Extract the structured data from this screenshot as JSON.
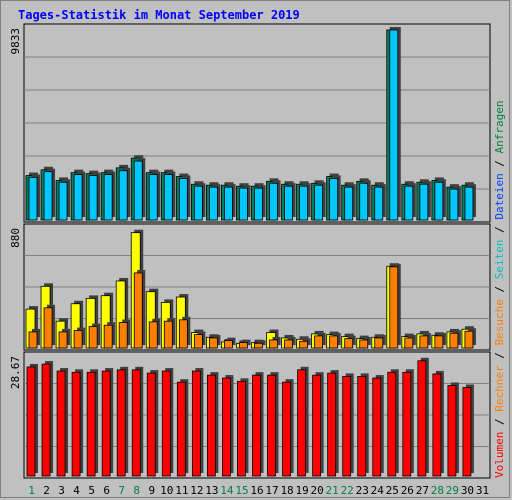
{
  "chart_data": {
    "type": "bar",
    "title": "Tages-Statistik im Monat September 2019",
    "days": [
      "1",
      "2",
      "3",
      "4",
      "5",
      "6",
      "7",
      "8",
      "9",
      "10",
      "11",
      "12",
      "13",
      "14",
      "15",
      "16",
      "17",
      "18",
      "19",
      "20",
      "21",
      "22",
      "23",
      "24",
      "25",
      "26",
      "27",
      "28",
      "29",
      "30",
      "31"
    ],
    "weekend_days": [
      "1",
      "7",
      "8",
      "14",
      "15",
      "21",
      "22",
      "28",
      "29"
    ],
    "colors": {
      "weekday_label": "#000000",
      "weekend_label": "#008040",
      "anfragen": "#008060",
      "dateien": "#00c8ff",
      "seiten": "#ffff00",
      "besuche": "#ff8000",
      "volumen": "#ff0000",
      "grid": "#808080",
      "plot_bg": "#c0c0c0"
    },
    "panels": [
      {
        "name": "hits-files",
        "ymax_label": "9833",
        "ymax": 9833,
        "series": [
          {
            "name": "Anfragen",
            "key": "anfragen",
            "values": [
              2300,
              2600,
              2050,
              2450,
              2400,
              2450,
              2700,
              3200,
              2450,
              2450,
              2250,
              1850,
              1800,
              1800,
              1750,
              1750,
              2000,
              1850,
              1850,
              1900,
              2250,
              1800,
              2000,
              1800,
              9833,
              1850,
              1950,
              2050,
              1700,
              1800
            ]
          },
          {
            "name": "Dateien",
            "key": "dateien",
            "values": [
              2200,
              2500,
              1950,
              2350,
              2300,
              2350,
              2550,
              3050,
              2350,
              2350,
              2150,
              1750,
              1700,
              1700,
              1650,
              1650,
              1900,
              1750,
              1750,
              1800,
              2150,
              1700,
              1900,
              1700,
              9833,
              1750,
              1850,
              1950,
              1600,
              1700
            ]
          }
        ]
      },
      {
        "name": "pages-visits",
        "ymax_label": "880",
        "ymax": 880,
        "series": [
          {
            "name": "Seiten",
            "key": "seiten",
            "values": [
              290,
              460,
              200,
              330,
              370,
              390,
              500,
              860,
              420,
              340,
              380,
              115,
              80,
              45,
              35,
              40,
              115,
              75,
              65,
              105,
              100,
              85,
              70,
              80,
              610,
              85,
              105,
              95,
              120,
              140
            ]
          },
          {
            "name": "Besuche",
            "key": "besuche",
            "values": [
              120,
              300,
              120,
              130,
              160,
              170,
              190,
              560,
              195,
              200,
              210,
              100,
              75,
              55,
              40,
              35,
              60,
              60,
              50,
              90,
              90,
              70,
              60,
              75,
              605,
              75,
              90,
              90,
              110,
              125
            ]
          }
        ]
      },
      {
        "name": "volume",
        "ymax_label": "28.67",
        "ymax": 28.67,
        "series": [
          {
            "name": "Volumen",
            "key": "volumen",
            "values": [
              26.5,
              27.2,
              25.5,
              25.2,
              25.2,
              25.5,
              25.8,
              25.8,
              25.0,
              25.5,
              22.8,
              25.5,
              24.5,
              23.8,
              23.0,
              24.5,
              24.5,
              22.8,
              25.8,
              24.5,
              25.0,
              24.2,
              24.2,
              23.8,
              25.2,
              25.2,
              28.0,
              24.8,
              22.0,
              21.5
            ]
          }
        ]
      }
    ],
    "legend_right": [
      {
        "text": "Volumen",
        "key": "volumen"
      },
      {
        "text": "/",
        "key": "separator"
      },
      {
        "text": "Rechner",
        "key": "besuche"
      },
      {
        "text": "/",
        "key": "separator"
      },
      {
        "text": "Besuche",
        "key": "besuche"
      },
      {
        "text": "/",
        "key": "separator"
      },
      {
        "text": "Seiten",
        "key": "dateien"
      },
      {
        "text": "/",
        "key": "separator"
      },
      {
        "text": "Dateien",
        "key": "dateien_dark"
      },
      {
        "text": "/",
        "key": "separator"
      },
      {
        "text": "Anfragen",
        "key": "anfragen"
      }
    ],
    "legend_colors": {
      "volumen": "#ff0000",
      "besuche": "#ff8000",
      "dateien": "#00c0c0",
      "dateien_dark": "#0040ff",
      "anfragen": "#008040",
      "separator": "#000000"
    }
  }
}
